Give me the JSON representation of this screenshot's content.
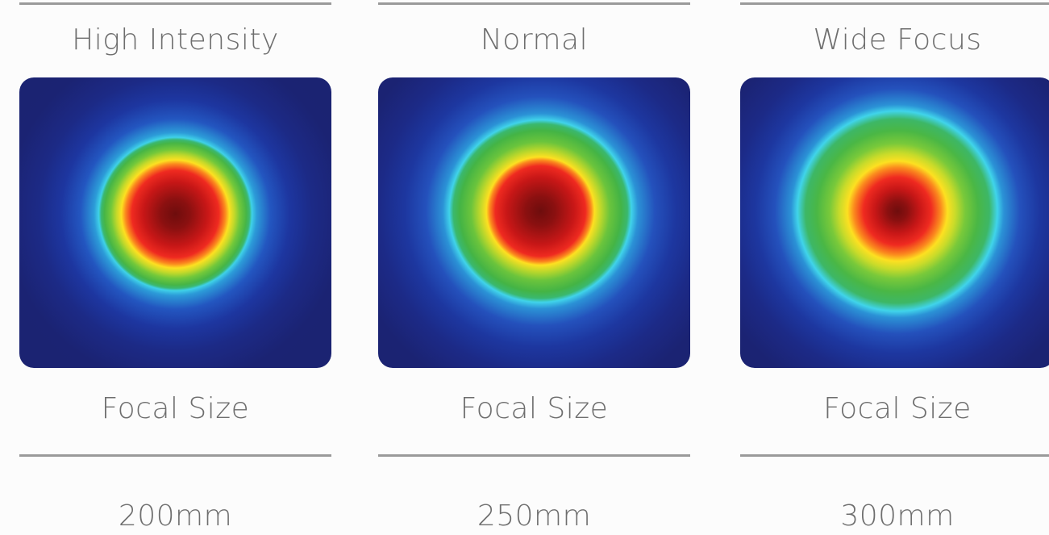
{
  "columns": [
    {
      "title": "High Intensity",
      "caption": "Focal Size",
      "value": "200mm"
    },
    {
      "title": "Normal",
      "caption": "Focal Size",
      "value": "250mm"
    },
    {
      "title": "Wide Focus",
      "caption": "Focal Size",
      "value": "300mm"
    }
  ],
  "colors": {
    "background": "#fcfcfc",
    "rule": "#9a9a9a",
    "text": "#6e6e6e",
    "map_outer": "#1b2370",
    "map_center": "#6e0d0d"
  }
}
